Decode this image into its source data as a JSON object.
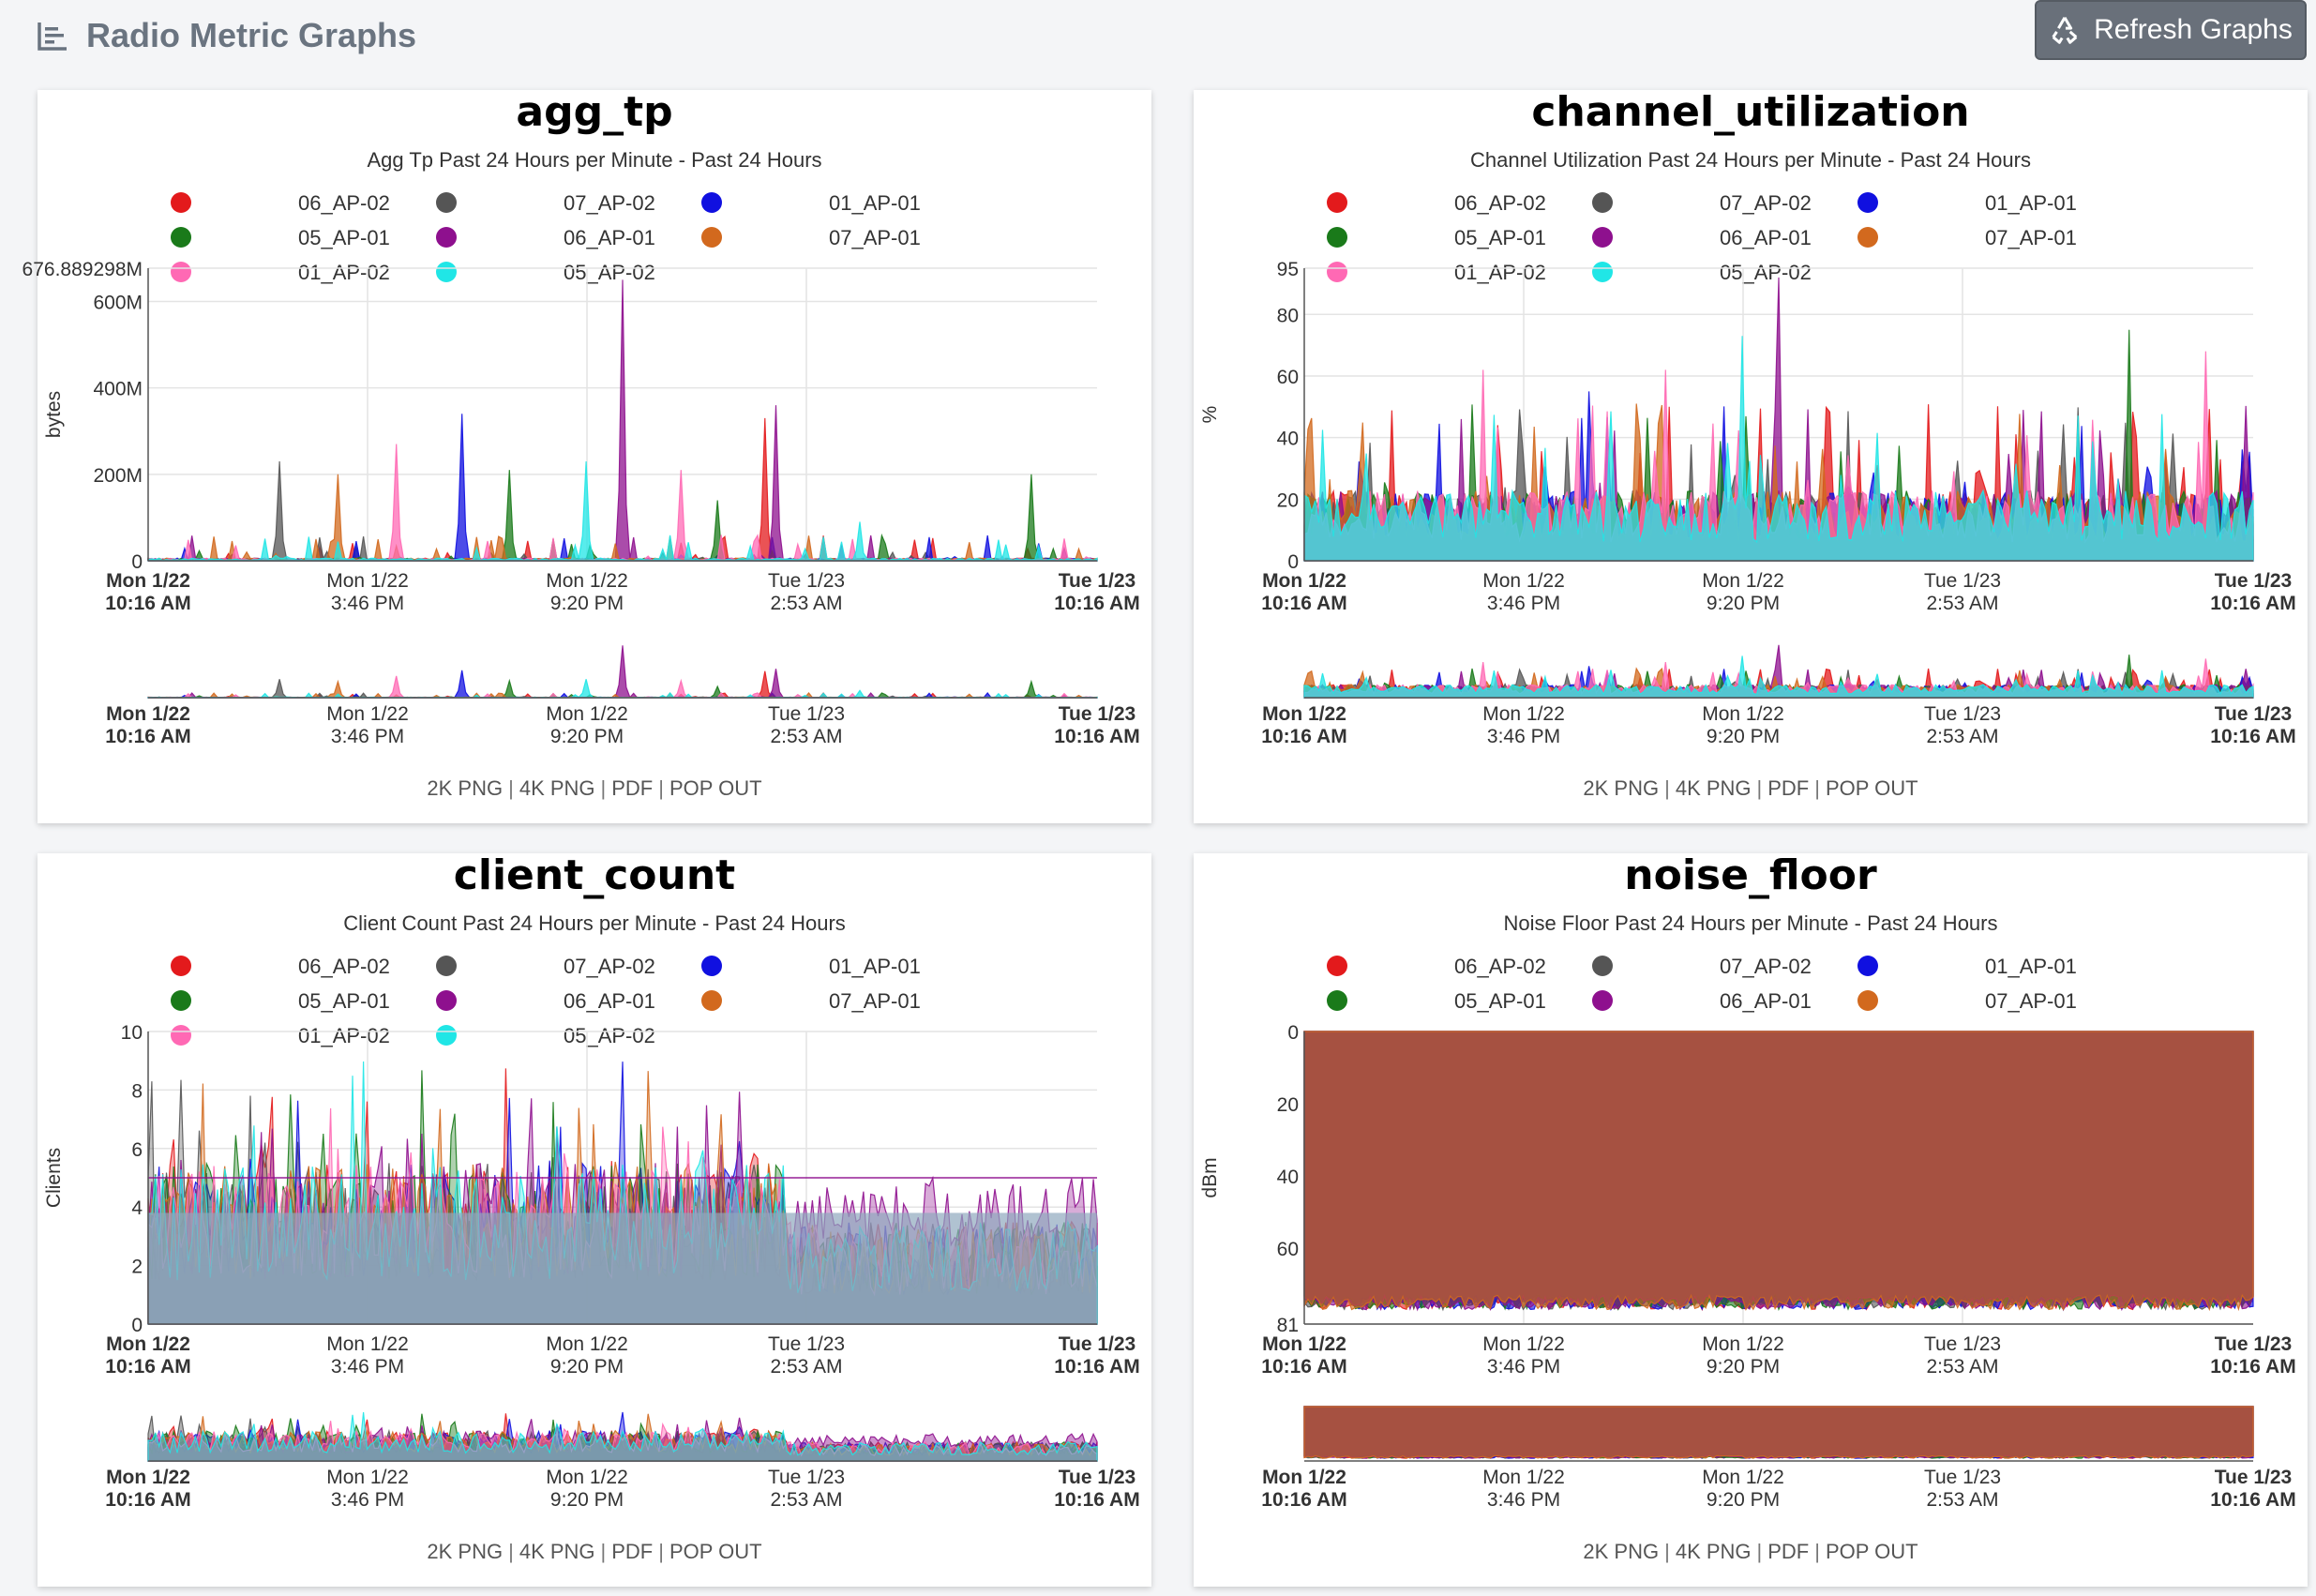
{
  "header": {
    "title": "Radio Metric Graphs",
    "refresh_label": "Refresh Graphs",
    "icons": {
      "title": "bar-chart-icon",
      "refresh": "recycle-icon"
    }
  },
  "links": [
    "2K PNG",
    "4K PNG",
    "PDF",
    "POP OUT"
  ],
  "x_ticks": [
    {
      "day": "Mon 1/22",
      "time": "10:16 AM",
      "bold": true
    },
    {
      "day": "Mon 1/22",
      "time": "3:46 PM",
      "bold": false
    },
    {
      "day": "Mon 1/22",
      "time": "9:20 PM",
      "bold": false
    },
    {
      "day": "Tue 1/23",
      "time": "2:53 AM",
      "bold": false
    },
    {
      "day": "Tue 1/23",
      "time": "10:16 AM",
      "bold": true
    }
  ],
  "legend_rows": [
    [
      [
        "#e31a1c",
        "06_AP-02"
      ],
      [
        "#555555",
        "07_AP-02"
      ],
      [
        "#1010e0",
        "01_AP-01"
      ]
    ],
    [
      [
        "#1a7a1a",
        "05_AP-01"
      ],
      [
        "#8e108e",
        "06_AP-01"
      ],
      [
        "#d2691e",
        "07_AP-01"
      ]
    ],
    [
      [
        "#ff69b4",
        "01_AP-02"
      ],
      [
        "#20e6e6",
        "05_AP-02"
      ]
    ]
  ],
  "colors": {
    "06_AP-02": "#e31a1c",
    "07_AP-02": "#555555",
    "01_AP-01": "#1010e0",
    "05_AP-01": "#1a7a1a",
    "06_AP-01": "#8e108e",
    "07_AP-01": "#d2691e",
    "01_AP-02": "#ff69b4",
    "05_AP-02": "#20e6e6",
    "fill": "#8fa8bd"
  },
  "chart_data": [
    {
      "type": "area",
      "title": "agg_tp",
      "subtitle": "Agg Tp Past 24 Hours per Minute - Past 24 Hours",
      "ylabel": "bytes",
      "ylim": [
        0,
        676.889298
      ],
      "y_ticks": [
        {
          "v": 0,
          "label": "0"
        },
        {
          "v": 200,
          "label": "200M"
        },
        {
          "v": 400,
          "label": "400M"
        },
        {
          "v": 600,
          "label": "600M"
        },
        {
          "v": 676.889298,
          "label": "676.889298M"
        }
      ],
      "x_range": [
        "Mon 1/22 10:16 AM",
        "Tue 1/23 10:16 AM"
      ],
      "series_count": 8,
      "spikes": [
        {
          "series": "06_AP-01",
          "x": 0.5,
          "y": 650
        },
        {
          "series": "06_AP-01",
          "x": 0.66,
          "y": 360
        },
        {
          "series": "06_AP-02",
          "x": 0.65,
          "y": 330
        },
        {
          "series": "01_AP-01",
          "x": 0.33,
          "y": 340
        },
        {
          "series": "01_AP-02",
          "x": 0.26,
          "y": 270
        },
        {
          "series": "05_AP-02",
          "x": 0.46,
          "y": 230
        },
        {
          "series": "05_AP-01",
          "x": 0.93,
          "y": 200
        },
        {
          "series": "07_AP-02",
          "x": 0.14,
          "y": 230
        },
        {
          "series": "07_AP-01",
          "x": 0.2,
          "y": 200
        },
        {
          "series": "05_AP-01",
          "x": 0.38,
          "y": 210
        },
        {
          "series": "01_AP-02",
          "x": 0.56,
          "y": 210
        },
        {
          "series": "05_AP-01",
          "x": 0.6,
          "y": 140
        },
        {
          "series": "05_AP-02",
          "x": 0.75,
          "y": 90
        }
      ]
    },
    {
      "type": "area",
      "title": "channel_utilization",
      "subtitle": "Channel Utilization Past 24 Hours per Minute - Past 24 Hours",
      "ylabel": "%",
      "ylim": [
        0,
        95
      ],
      "y_ticks": [
        {
          "v": 0,
          "label": "0"
        },
        {
          "v": 20,
          "label": "20"
        },
        {
          "v": 40,
          "label": "40"
        },
        {
          "v": 60,
          "label": "60"
        },
        {
          "v": 80,
          "label": "80"
        },
        {
          "v": 95,
          "label": "95"
        }
      ],
      "x_range": [
        "Mon 1/22 10:16 AM",
        "Tue 1/23 10:16 AM"
      ],
      "series_count": 8,
      "baseline": 6,
      "noise": 28,
      "spikes": [
        {
          "series": "06_AP-01",
          "x": 0.5,
          "y": 92
        },
        {
          "series": "05_AP-02",
          "x": 0.46,
          "y": 73
        },
        {
          "series": "01_AP-02",
          "x": 0.95,
          "y": 68
        },
        {
          "series": "05_AP-01",
          "x": 0.87,
          "y": 75
        },
        {
          "series": "01_AP-02",
          "x": 0.19,
          "y": 62
        },
        {
          "series": "01_AP-02",
          "x": 0.38,
          "y": 62
        },
        {
          "series": "01_AP-01",
          "x": 0.3,
          "y": 55
        }
      ]
    },
    {
      "type": "area",
      "title": "client_count",
      "subtitle": "Client Count Past 24 Hours per Minute - Past 24 Hours",
      "ylabel": "Clients",
      "ylim": [
        0,
        10
      ],
      "y_ticks": [
        {
          "v": 0,
          "label": "0"
        },
        {
          "v": 2,
          "label": "2"
        },
        {
          "v": 4,
          "label": "4"
        },
        {
          "v": 6,
          "label": "6"
        },
        {
          "v": 8,
          "label": "8"
        },
        {
          "v": 10,
          "label": "10"
        }
      ],
      "x_range": [
        "Mon 1/22 10:16 AM",
        "Tue 1/23 10:16 AM"
      ],
      "series_count": 8
    },
    {
      "type": "area",
      "title": "noise_floor",
      "subtitle": "Noise Floor Past 24 Hours per Minute - Past 24 Hours",
      "ylabel": "dBm",
      "ylim": [
        0,
        81
      ],
      "y_ticks": [
        {
          "v": 0,
          "label": "0"
        },
        {
          "v": 20,
          "label": "20"
        },
        {
          "v": 40,
          "label": "40"
        },
        {
          "v": 60,
          "label": "60"
        },
        {
          "v": 81,
          "label": "81"
        }
      ],
      "x_range": [
        "Mon 1/22 10:16 AM",
        "Tue 1/23 10:16 AM"
      ],
      "series_count": 6,
      "level": 75
    }
  ]
}
